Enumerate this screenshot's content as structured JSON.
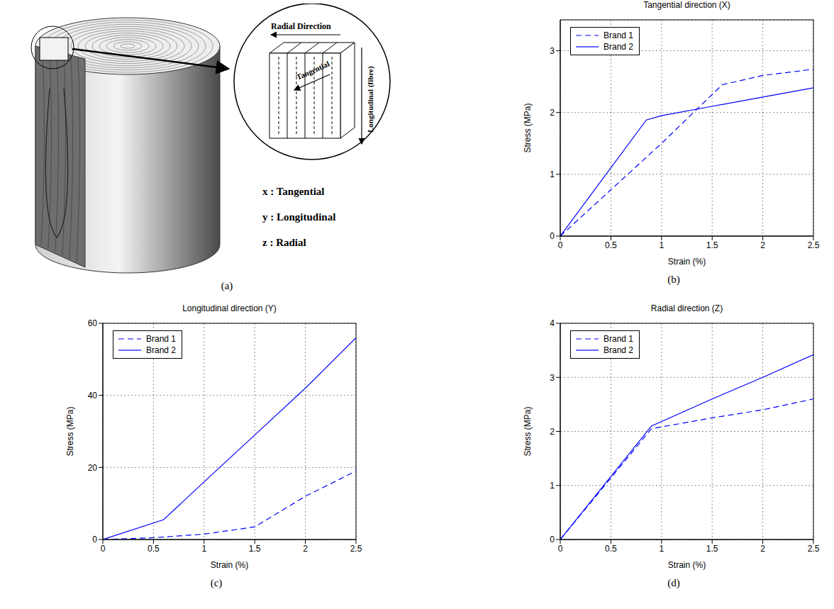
{
  "diagram": {
    "panel": "(a)",
    "labels": {
      "radial": "Radial Direction",
      "tangential": "Tangential",
      "longitudinal": "Longitudinal (fibre)"
    },
    "key": [
      "x : Tangential",
      "y : Longitudinal",
      "z : Radial"
    ]
  },
  "chart_data": [
    {
      "panel": "(b)",
      "type": "line",
      "title": "Tangential direction (X)",
      "x_label": "Strain (%)",
      "y_label": "Stress (MPa)",
      "xlim": [
        0,
        2.5
      ],
      "xticks": [
        0,
        0.5,
        1,
        1.5,
        2,
        2.5
      ],
      "ylim": [
        0,
        3.5
      ],
      "yticks": [
        0,
        1,
        2,
        3
      ],
      "grid": true,
      "legend": "upper left",
      "series": [
        {
          "name": "Brand 1",
          "color": "#0000ff",
          "line_style": "dashed",
          "x": [
            0,
            0.5,
            1,
            1.6,
            2,
            2.5
          ],
          "values": [
            0,
            0.75,
            1.5,
            2.45,
            2.6,
            2.7
          ]
        },
        {
          "name": "Brand 2",
          "color": "#0000ff",
          "line_style": "solid",
          "x": [
            0,
            0.85,
            1,
            1.5,
            2,
            2.5
          ],
          "values": [
            0,
            1.88,
            1.95,
            2.1,
            2.25,
            2.4
          ]
        }
      ]
    },
    {
      "panel": "(c)",
      "type": "line",
      "title": "Longitudinal direction (Y)",
      "x_label": "Strain (%)",
      "y_label": "Stress (MPa)",
      "xlim": [
        0,
        2.5
      ],
      "xticks": [
        0,
        0.5,
        1,
        1.5,
        2,
        2.5
      ],
      "ylim": [
        0,
        60
      ],
      "yticks": [
        0,
        20,
        40,
        60
      ],
      "grid": true,
      "legend": "upper left",
      "series": [
        {
          "name": "Brand 1",
          "color": "#0000ff",
          "line_style": "dashed",
          "x": [
            0,
            0.5,
            1,
            1.5,
            2,
            2.5
          ],
          "values": [
            0,
            0.5,
            1.5,
            3.5,
            12,
            19
          ]
        },
        {
          "name": "Brand 2",
          "color": "#0000ff",
          "line_style": "solid",
          "x": [
            0,
            0.6,
            1,
            1.5,
            2,
            2.5
          ],
          "values": [
            0,
            5.5,
            16,
            29,
            42,
            56
          ]
        }
      ]
    },
    {
      "panel": "(d)",
      "type": "line",
      "title": "Radial direction (Z)",
      "x_label": "Strain (%)",
      "y_label": "Stress (MPa)",
      "xlim": [
        0,
        2.5
      ],
      "xticks": [
        0,
        0.5,
        1,
        1.5,
        2,
        2.5
      ],
      "ylim": [
        0,
        4
      ],
      "yticks": [
        0,
        1,
        2,
        3,
        4
      ],
      "grid": true,
      "legend": "upper left",
      "series": [
        {
          "name": "Brand 1",
          "color": "#0000ff",
          "line_style": "dashed",
          "x": [
            0,
            0.9,
            1.5,
            2,
            2.5
          ],
          "values": [
            0,
            2.05,
            2.25,
            2.4,
            2.6
          ]
        },
        {
          "name": "Brand 2",
          "color": "#0000ff",
          "line_style": "solid",
          "x": [
            0,
            0.9,
            1.5,
            2,
            2.5
          ],
          "values": [
            0,
            2.1,
            2.6,
            3.0,
            3.42
          ]
        }
      ]
    }
  ]
}
